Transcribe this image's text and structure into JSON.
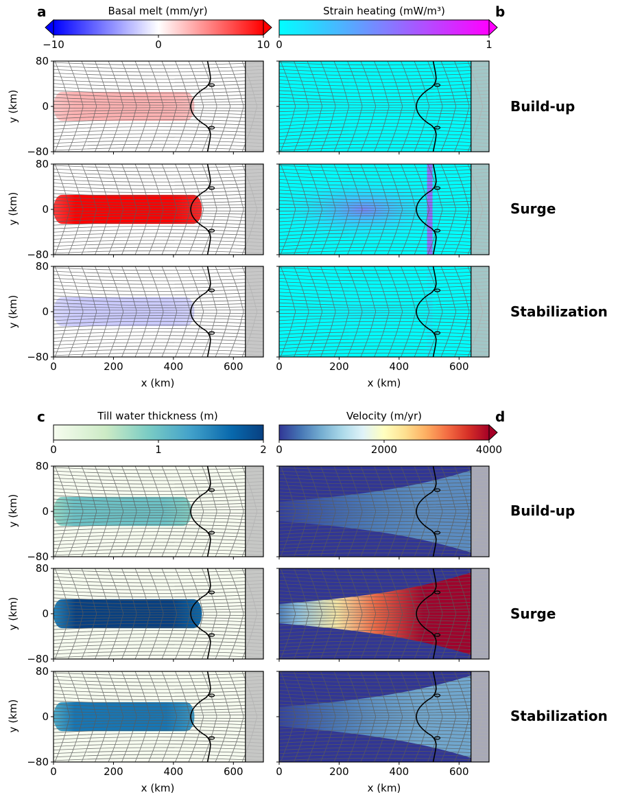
{
  "chart_data": [
    {
      "type": "heatmap",
      "panel_letter": "a",
      "colorbar": {
        "label": "Basal melt (mm/yr)",
        "range": [
          -10,
          10
        ],
        "ticks": [
          "−10",
          "0",
          "10"
        ],
        "tick_values": [
          -10,
          0,
          10
        ],
        "colormap": "bwr",
        "extend": "both"
      },
      "rows": [
        {
          "label": "Build-up",
          "peak_value": 3,
          "field_extent_km": [
            0,
            470
          ]
        },
        {
          "label": "Surge",
          "peak_value": 10,
          "field_extent_km": [
            0,
            495
          ]
        },
        {
          "label": "Stabilization",
          "peak_value": -2,
          "field_extent_km": [
            0,
            470
          ]
        }
      ],
      "xlabel": "x (km)",
      "ylabel": "y (km)",
      "xlim": [
        0,
        700
      ],
      "ylim": [
        -80,
        80
      ],
      "xticks": [
        "0",
        "200",
        "400",
        "600"
      ],
      "yticks": [
        "80",
        "0",
        "−80"
      ]
    },
    {
      "type": "heatmap",
      "panel_letter": "b",
      "colorbar": {
        "label": "Strain heating (mW/m³)",
        "range": [
          0,
          1
        ],
        "ticks": [
          "0",
          "1"
        ],
        "tick_values": [
          0,
          1
        ],
        "colormap": "cool",
        "extend": "max"
      },
      "rows": [
        {
          "label": "Build-up",
          "peak_value": 0
        },
        {
          "label": "Surge",
          "peak_value": 1
        },
        {
          "label": "Stabilization",
          "peak_value": 0.1
        }
      ],
      "xlabel": "x (km)",
      "ylabel": "y (km)",
      "xlim": [
        0,
        700
      ],
      "ylim": [
        -80,
        80
      ],
      "xticks": [
        "0",
        "200",
        "400",
        "600"
      ],
      "yticks": [
        "80",
        "0",
        "−80"
      ]
    },
    {
      "type": "heatmap",
      "panel_letter": "c",
      "colorbar": {
        "label": "Till water thickness (m)",
        "range": [
          0,
          2
        ],
        "ticks": [
          "0",
          "1",
          "2"
        ],
        "tick_values": [
          0,
          1,
          2
        ],
        "colormap": "GnBu",
        "extend": "neither"
      },
      "rows": [
        {
          "label": "Build-up",
          "peak_value": 1,
          "field_extent_km": [
            0,
            460
          ]
        },
        {
          "label": "Surge",
          "peak_value": 2,
          "field_extent_km": [
            0,
            495
          ]
        },
        {
          "label": "Stabilization",
          "peak_value": 1.6,
          "field_extent_km": [
            0,
            470
          ]
        }
      ],
      "xlabel": "x (km)",
      "ylabel": "y (km)",
      "xlim": [
        0,
        700
      ],
      "ylim": [
        -80,
        80
      ],
      "xticks": [
        "0",
        "200",
        "400",
        "600"
      ],
      "yticks": [
        "80",
        "0",
        "−80"
      ]
    },
    {
      "type": "heatmap",
      "panel_letter": "d",
      "colorbar": {
        "label": "Velocity (m/yr)",
        "range": [
          0,
          4000
        ],
        "ticks": [
          "0",
          "2000",
          "4000"
        ],
        "tick_values": [
          0,
          2000,
          4000
        ],
        "colormap": "RdYlBu_r",
        "extend": "max"
      },
      "rows": [
        {
          "label": "Build-up",
          "peak_value": 600
        },
        {
          "label": "Surge",
          "peak_value": 4000
        },
        {
          "label": "Stabilization",
          "peak_value": 800
        }
      ],
      "xlabel": "x (km)",
      "ylabel": "y (km)",
      "xlim": [
        0,
        700
      ],
      "ylim": [
        -80,
        80
      ],
      "xticks": [
        "0",
        "200",
        "400",
        "600"
      ],
      "yticks": [
        "80",
        "0",
        "−80"
      ]
    }
  ],
  "domain": {
    "calving_front_x_km": 640,
    "grounding_line_x_km": 500
  },
  "colors": {
    "shelf_shading": "#bdbdbd",
    "contour_line": "#5a5a5a",
    "grounding_line": "#000000"
  }
}
